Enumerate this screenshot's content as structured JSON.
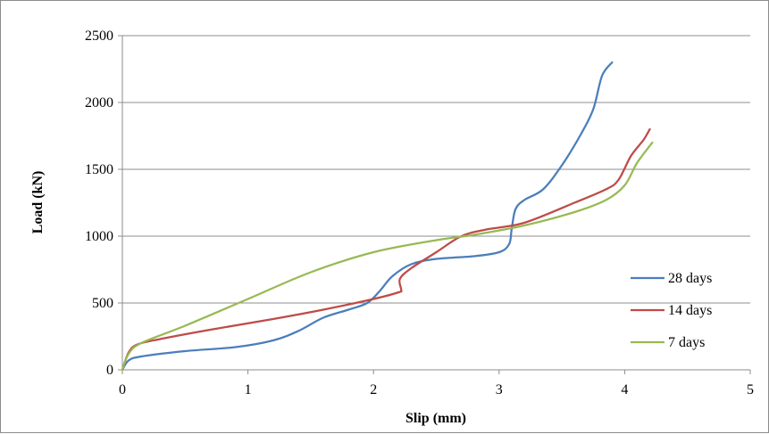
{
  "chart_data": {
    "type": "line",
    "title": "",
    "xlabel": "Slip (mm)",
    "ylabel": "Load (kN)",
    "xlim": [
      0,
      5
    ],
    "ylim": [
      0,
      2500
    ],
    "xticks": [
      "0",
      "1",
      "2",
      "3",
      "4",
      "5"
    ],
    "yticks": [
      "0",
      "500",
      "1000",
      "1500",
      "2000",
      "2500"
    ],
    "grid": "horizontal",
    "legend_position": "right",
    "series": [
      {
        "name": "28 days",
        "color": "#4a7ebb",
        "points": [
          [
            0,
            0
          ],
          [
            0.05,
            70
          ],
          [
            0.15,
            100
          ],
          [
            0.5,
            140
          ],
          [
            0.9,
            170
          ],
          [
            1.2,
            220
          ],
          [
            1.4,
            290
          ],
          [
            1.6,
            390
          ],
          [
            1.8,
            450
          ],
          [
            1.95,
            500
          ],
          [
            2.05,
            590
          ],
          [
            2.15,
            700
          ],
          [
            2.3,
            790
          ],
          [
            2.5,
            830
          ],
          [
            2.8,
            850
          ],
          [
            3.0,
            880
          ],
          [
            3.08,
            940
          ],
          [
            3.1,
            1050
          ],
          [
            3.13,
            1200
          ],
          [
            3.2,
            1270
          ],
          [
            3.35,
            1350
          ],
          [
            3.5,
            1530
          ],
          [
            3.65,
            1760
          ],
          [
            3.75,
            1950
          ],
          [
            3.82,
            2200
          ],
          [
            3.9,
            2300
          ]
        ]
      },
      {
        "name": "14 days",
        "color": "#be4b48",
        "points": [
          [
            0,
            0
          ],
          [
            0.05,
            130
          ],
          [
            0.12,
            190
          ],
          [
            0.3,
            230
          ],
          [
            0.7,
            300
          ],
          [
            1.2,
            380
          ],
          [
            1.6,
            450
          ],
          [
            2.0,
            530
          ],
          [
            2.2,
            580
          ],
          [
            2.22,
            600
          ],
          [
            2.21,
            680
          ],
          [
            2.3,
            760
          ],
          [
            2.5,
            880
          ],
          [
            2.7,
            1000
          ],
          [
            2.9,
            1050
          ],
          [
            3.2,
            1100
          ],
          [
            3.6,
            1250
          ],
          [
            3.85,
            1350
          ],
          [
            3.95,
            1420
          ],
          [
            4.05,
            1600
          ],
          [
            4.15,
            1720
          ],
          [
            4.2,
            1800
          ]
        ]
      },
      {
        "name": "7 days",
        "color": "#98b954",
        "points": [
          [
            0,
            0
          ],
          [
            0.05,
            120
          ],
          [
            0.15,
            200
          ],
          [
            0.5,
            330
          ],
          [
            1.0,
            530
          ],
          [
            1.5,
            730
          ],
          [
            2.0,
            880
          ],
          [
            2.5,
            970
          ],
          [
            2.8,
            1010
          ],
          [
            3.2,
            1080
          ],
          [
            3.6,
            1180
          ],
          [
            3.85,
            1270
          ],
          [
            4.0,
            1380
          ],
          [
            4.1,
            1550
          ],
          [
            4.22,
            1700
          ]
        ]
      }
    ]
  }
}
